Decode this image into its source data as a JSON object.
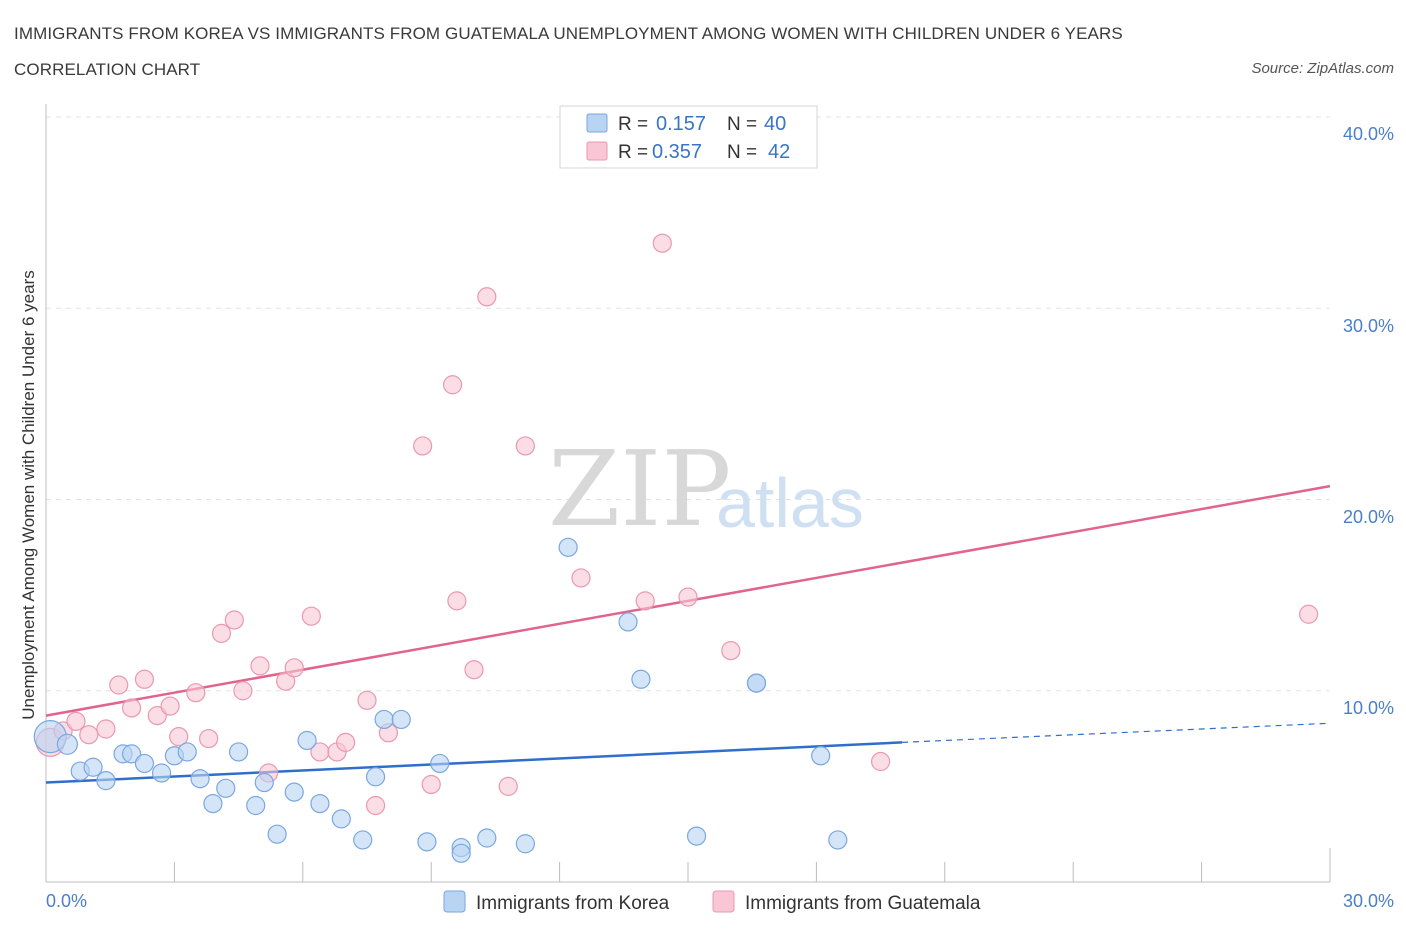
{
  "title": "IMMIGRANTS FROM KOREA VS IMMIGRANTS FROM GUATEMALA UNEMPLOYMENT AMONG WOMEN WITH CHILDREN UNDER 6 YEARS CORRELATION CHART",
  "source": "Source: ZipAtlas.com",
  "watermark": {
    "zip": "ZIP",
    "atlas": "atlas"
  },
  "legend": {
    "r_label": "R =",
    "n_label": "N =",
    "rows": [
      {
        "r": "0.157",
        "n": "40"
      },
      {
        "r": "0.357",
        "n": "42"
      }
    ]
  },
  "colors": {
    "korea_fill": "#b9d3f3",
    "korea_stroke": "#7aa7e0",
    "korea_line": "#2f6fcc",
    "guatemala_fill": "#f8c6d4",
    "guatemala_stroke": "#ea98b0",
    "guatemala_line": "#e0648e"
  },
  "chart_data": {
    "type": "scatter",
    "title": "IMMIGRANTS FROM KOREA VS IMMIGRANTS FROM GUATEMALA UNEMPLOYMENT AMONG WOMEN WITH CHILDREN UNDER 6 YEARS CORRELATION CHART",
    "xlabel": "",
    "ylabel": "Unemployment Among Women with Children Under 6 years",
    "xlim": [
      0,
      30
    ],
    "ylim": [
      0,
      40
    ],
    "x_tick_labels": [
      "0.0%",
      "30.0%"
    ],
    "y_tick_labels": [
      "10.0%",
      "20.0%",
      "30.0%",
      "40.0%"
    ],
    "grid": true,
    "legend_position": "top-center",
    "series": [
      {
        "name": "Immigrants from Korea",
        "r": 0.157,
        "n": 40,
        "trend": {
          "x": [
            0,
            20
          ],
          "y": [
            5.2,
            7.3
          ],
          "dashed_extension": [
            20,
            30
          ],
          "y_end": 8.3
        },
        "points": [
          [
            0.1,
            7.6,
            16
          ],
          [
            0.5,
            7.2,
            10
          ],
          [
            0.8,
            5.8,
            9
          ],
          [
            1.1,
            6.0,
            9
          ],
          [
            1.4,
            5.3,
            9
          ],
          [
            1.8,
            6.7,
            9
          ],
          [
            2.0,
            6.7,
            9
          ],
          [
            2.3,
            6.2,
            9
          ],
          [
            2.7,
            5.7,
            9
          ],
          [
            3.0,
            6.6,
            9
          ],
          [
            3.3,
            6.8,
            9
          ],
          [
            3.6,
            5.4,
            9
          ],
          [
            3.9,
            4.1,
            9
          ],
          [
            4.2,
            4.9,
            9
          ],
          [
            4.5,
            6.8,
            9
          ],
          [
            4.9,
            4.0,
            9
          ],
          [
            5.1,
            5.2,
            9
          ],
          [
            5.4,
            2.5,
            9
          ],
          [
            5.8,
            4.7,
            9
          ],
          [
            6.1,
            7.4,
            9
          ],
          [
            6.4,
            4.1,
            9
          ],
          [
            6.9,
            3.3,
            9
          ],
          [
            7.4,
            2.2,
            9
          ],
          [
            7.7,
            5.5,
            9
          ],
          [
            7.9,
            8.5,
            9
          ],
          [
            8.3,
            8.5,
            9
          ],
          [
            8.9,
            2.1,
            9
          ],
          [
            9.2,
            6.2,
            9
          ],
          [
            9.7,
            1.8,
            9
          ],
          [
            9.7,
            1.5,
            9
          ],
          [
            10.3,
            2.3,
            9
          ],
          [
            11.2,
            2.0,
            9
          ],
          [
            12.2,
            17.5,
            9
          ],
          [
            13.6,
            13.6,
            9
          ],
          [
            13.9,
            10.6,
            9
          ],
          [
            15.2,
            2.4,
            9
          ],
          [
            16.6,
            10.4,
            9
          ],
          [
            16.6,
            10.4,
            9
          ],
          [
            18.1,
            6.6,
            9
          ],
          [
            18.5,
            2.2,
            9
          ]
        ]
      },
      {
        "name": "Immigrants from Guatemala",
        "r": 0.357,
        "n": 42,
        "trend": {
          "x": [
            0,
            30
          ],
          "y": [
            8.7,
            20.7
          ]
        },
        "points": [
          [
            0.1,
            7.3,
            14
          ],
          [
            0.4,
            7.9,
            9
          ],
          [
            0.7,
            8.4,
            9
          ],
          [
            1.0,
            7.7,
            9
          ],
          [
            1.4,
            8.0,
            9
          ],
          [
            1.7,
            10.3,
            9
          ],
          [
            2.0,
            9.1,
            9
          ],
          [
            2.3,
            10.6,
            9
          ],
          [
            2.6,
            8.7,
            9
          ],
          [
            2.9,
            9.2,
            9
          ],
          [
            3.1,
            7.6,
            9
          ],
          [
            3.5,
            9.9,
            9
          ],
          [
            3.8,
            7.5,
            9
          ],
          [
            4.1,
            13.0,
            9
          ],
          [
            4.4,
            13.7,
            9
          ],
          [
            4.6,
            10.0,
            9
          ],
          [
            5.0,
            11.3,
            9
          ],
          [
            5.2,
            5.7,
            9
          ],
          [
            5.6,
            10.5,
            9
          ],
          [
            5.8,
            11.2,
            9
          ],
          [
            6.2,
            13.9,
            9
          ],
          [
            6.4,
            6.8,
            9
          ],
          [
            6.8,
            6.8,
            9
          ],
          [
            7.0,
            7.3,
            9
          ],
          [
            7.5,
            9.5,
            9
          ],
          [
            7.7,
            4.0,
            9
          ],
          [
            8.0,
            7.8,
            9
          ],
          [
            8.8,
            22.8,
            9
          ],
          [
            9.0,
            5.1,
            9
          ],
          [
            9.5,
            26.0,
            9
          ],
          [
            9.6,
            14.7,
            9
          ],
          [
            10.0,
            11.1,
            9
          ],
          [
            10.3,
            30.6,
            9
          ],
          [
            10.8,
            5.0,
            9
          ],
          [
            11.2,
            22.8,
            9
          ],
          [
            12.5,
            15.9,
            9
          ],
          [
            14.0,
            14.7,
            9
          ],
          [
            14.4,
            33.4,
            9
          ],
          [
            15.0,
            14.9,
            9
          ],
          [
            16.0,
            12.1,
            9
          ],
          [
            19.5,
            6.3,
            9
          ],
          [
            29.5,
            14.0,
            9
          ]
        ]
      }
    ]
  },
  "bottom_legend": [
    "Immigrants from Korea",
    "Immigrants from Guatemala"
  ]
}
